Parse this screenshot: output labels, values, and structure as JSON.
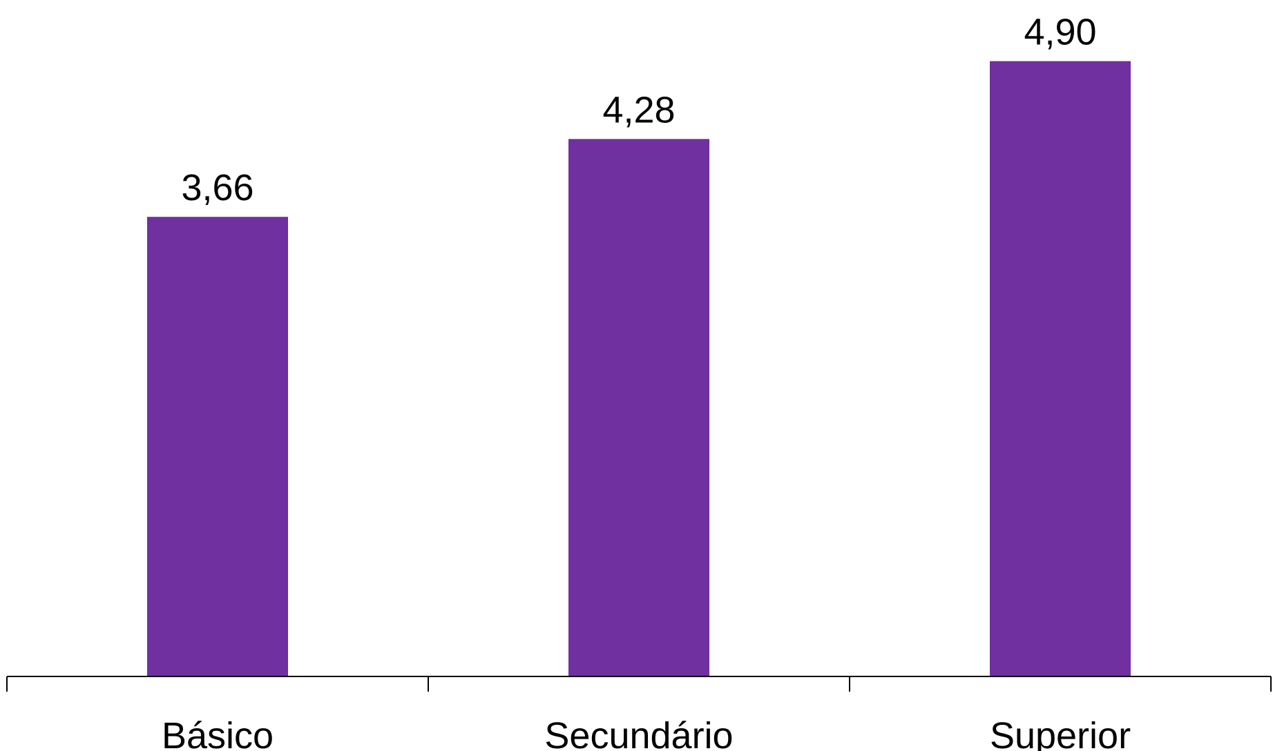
{
  "chart_data": {
    "type": "bar",
    "title": "",
    "xlabel": "",
    "ylabel": "",
    "categories": [
      "Básico",
      "Secundário",
      "Superior"
    ],
    "values": [
      3.66,
      4.28,
      4.9
    ],
    "value_labels": [
      "3,66",
      "4,28",
      "4,90"
    ],
    "ylim": [
      0,
      5.2
    ],
    "grid": false,
    "legend": "none",
    "bar_color": "#7030A0",
    "axis_color": "#000000"
  }
}
